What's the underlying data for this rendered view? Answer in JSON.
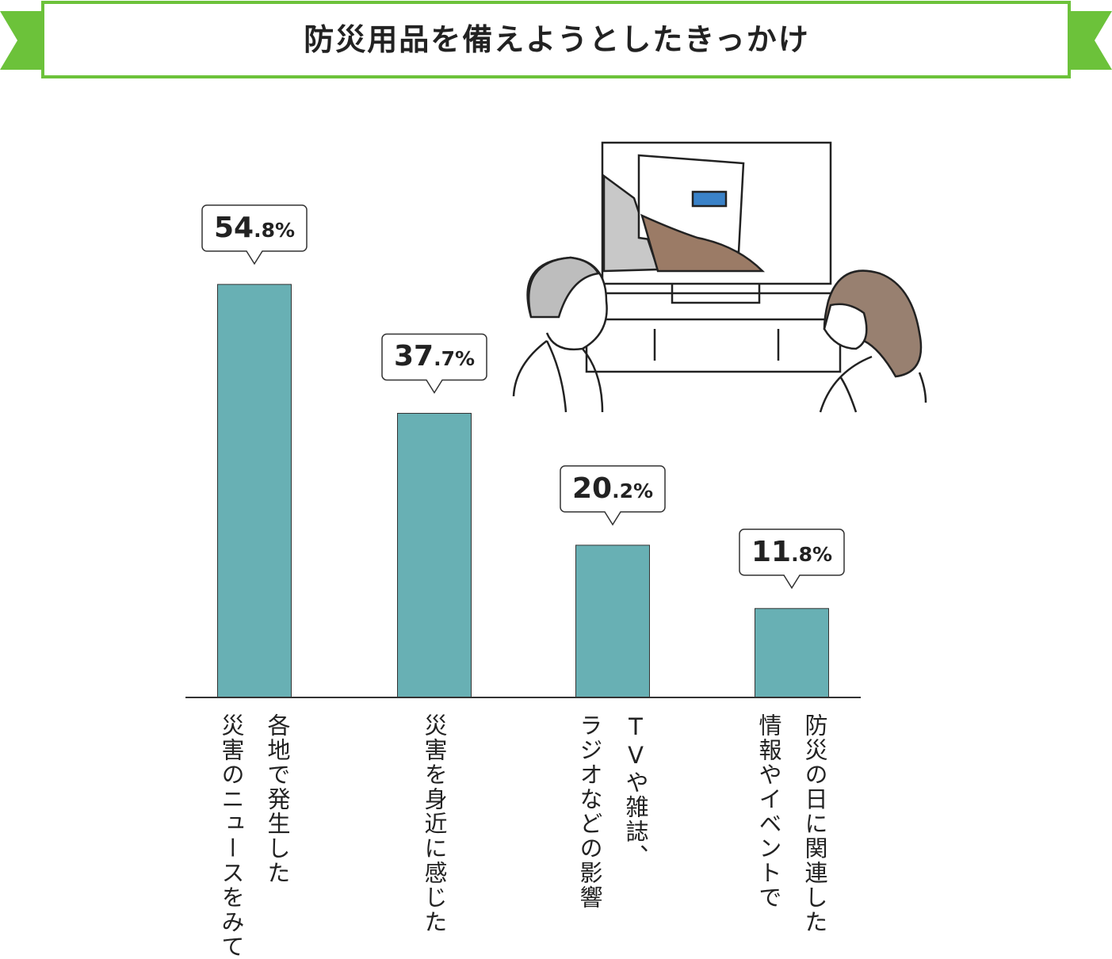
{
  "chart_data": {
    "type": "bar",
    "title": "防災用品を備えようとしたきっかけ",
    "categories": [
      "各地で発生した\n災害のニュースをみて",
      "災害を身近に感じた",
      "TVや雑誌、\nラジオなどの影響",
      "防災の日に関連した\n情報やイベントで"
    ],
    "values": [
      54.8,
      37.7,
      20.2,
      11.8
    ],
    "value_labels": [
      "54.8%",
      "37.7%",
      "20.2%",
      "11.8%"
    ],
    "color": "#68b0b4"
  }
}
